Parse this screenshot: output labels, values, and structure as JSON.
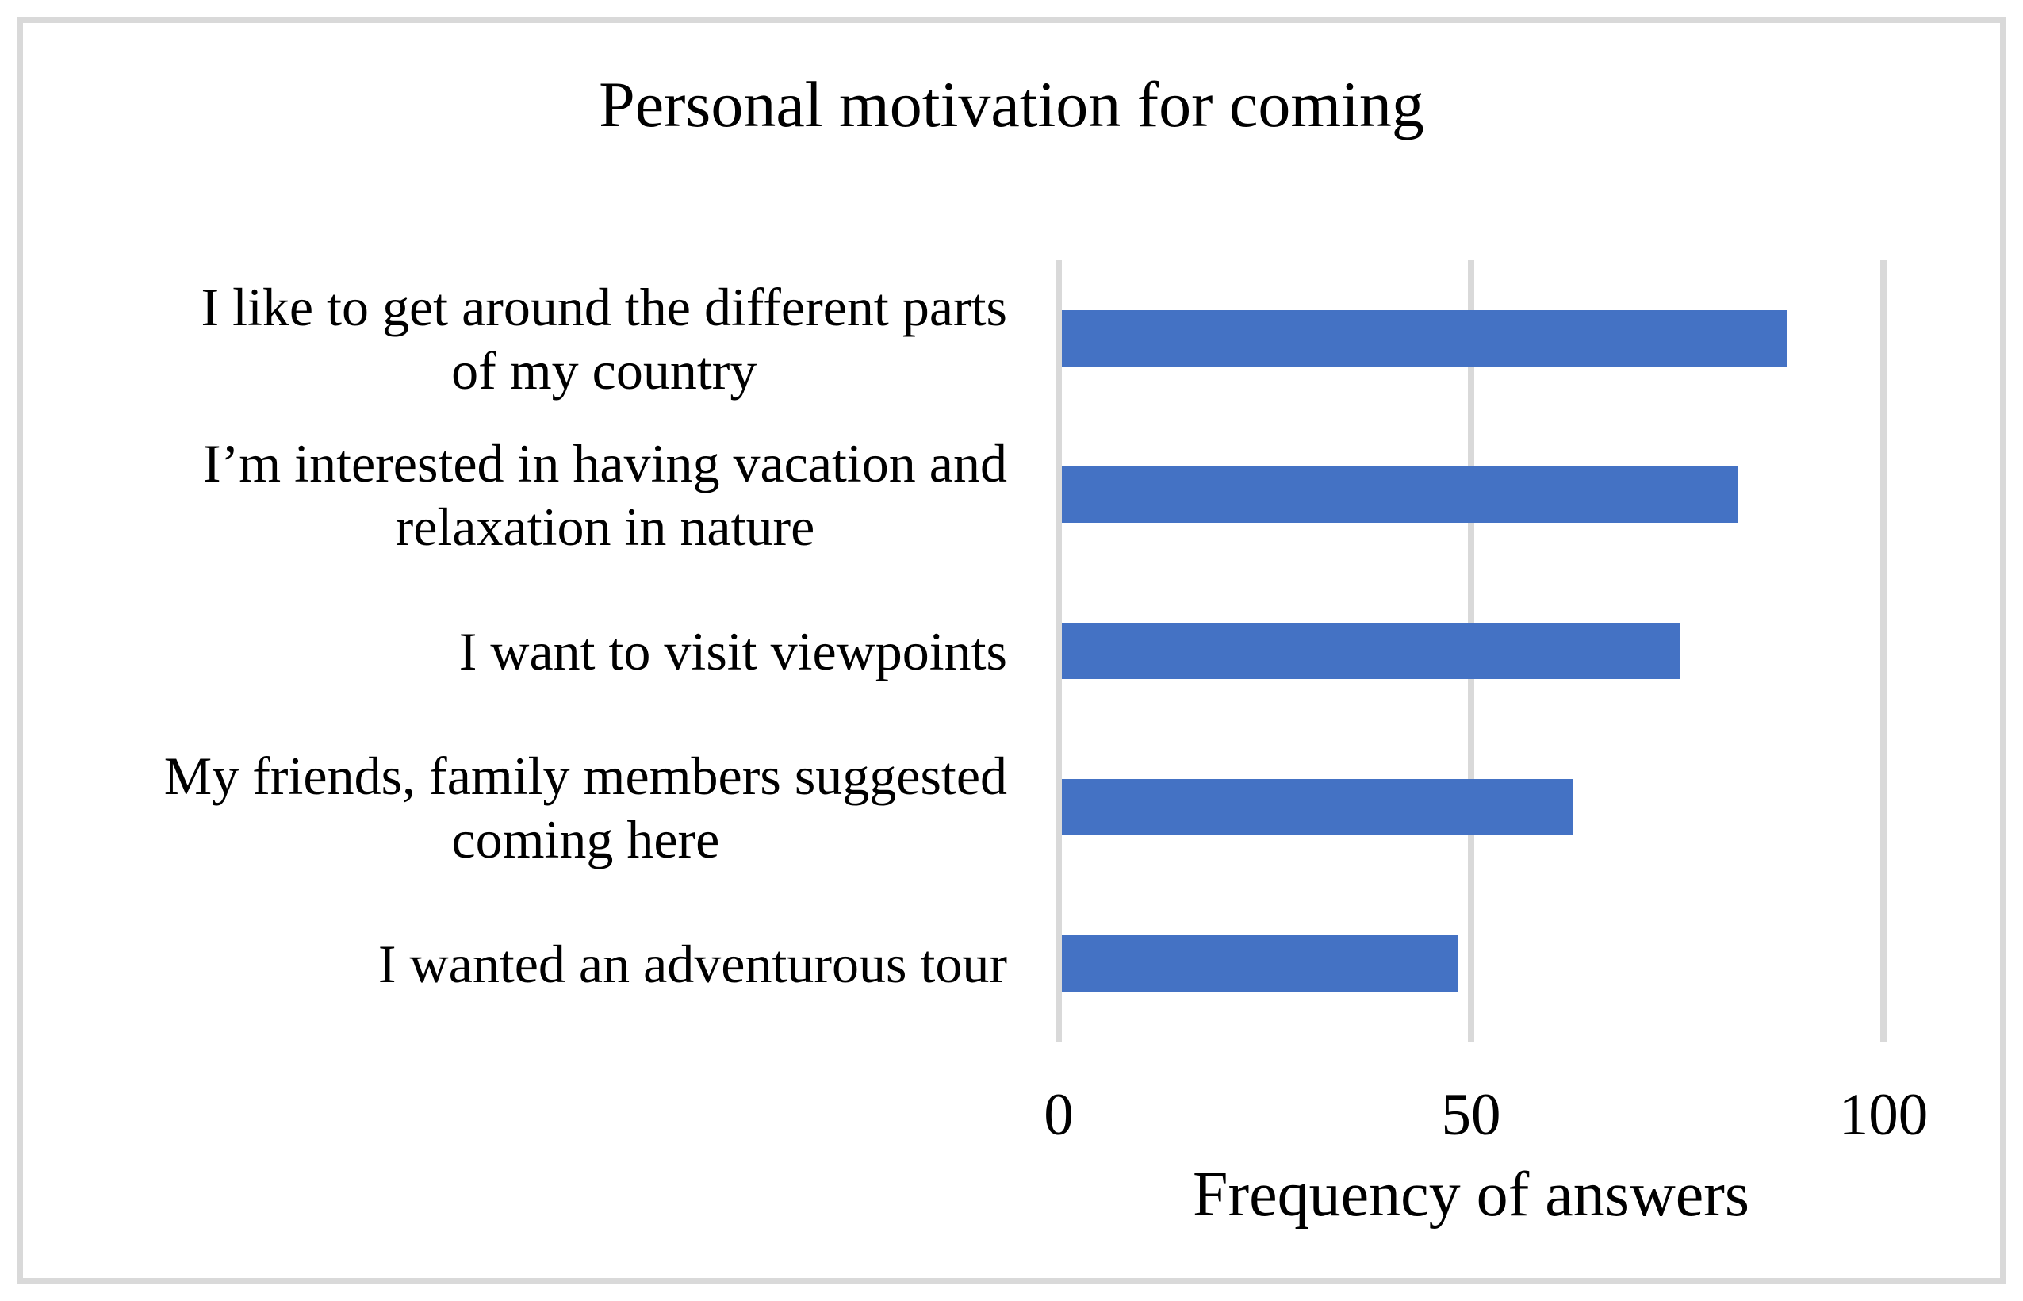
{
  "chart_data": {
    "type": "bar",
    "orientation": "horizontal",
    "title": "Personal motivation for coming",
    "categories": [
      "I like to get around the different parts\nof my country",
      "I’m interested in having vacation and\nrelaxation in nature",
      "I want to visit viewpoints",
      "My friends, family members suggested\ncoming here",
      "I wanted an adventurous tour"
    ],
    "values": [
      88,
      82,
      75,
      62,
      48
    ],
    "xlabel": "Frequency of answers",
    "ylabel": "",
    "xlim": [
      0,
      100
    ],
    "xticks": [
      0,
      50,
      100
    ],
    "grid": true,
    "legend": false,
    "bar_color": "#4472c4",
    "gridline_color": "#d9d9d9",
    "frame_border_color": "#d9d9d9",
    "text_color": "#000000",
    "background_color": "#ffffff"
  }
}
